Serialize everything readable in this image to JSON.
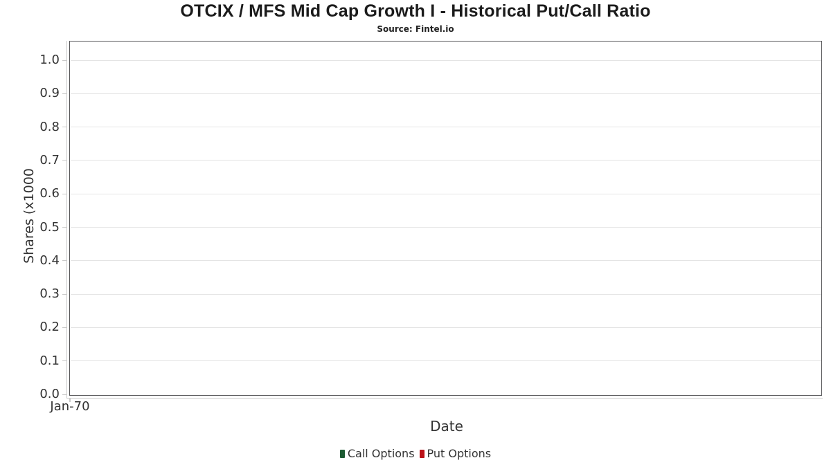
{
  "chart_data": {
    "type": "line",
    "title": "OTCIX / MFS Mid Cap Growth I - Historical Put/Call Ratio",
    "subtitle": "Source: Fintel.io",
    "xlabel": "Date",
    "ylabel": "Shares (x1000",
    "x_tick_labels": [
      "Jan-70"
    ],
    "y_tick_labels": [
      "0.0",
      "0.1",
      "0.2",
      "0.3",
      "0.4",
      "0.5",
      "0.6",
      "0.7",
      "0.8",
      "0.9",
      "1.0"
    ],
    "ylim": [
      0,
      1.05
    ],
    "grid": true,
    "legend_position": "bottom",
    "series": [
      {
        "name": "Call Options",
        "color": "#1c5a32",
        "x": [],
        "values": []
      },
      {
        "name": "Put Options",
        "color": "#bb1118",
        "x": [],
        "values": []
      }
    ]
  },
  "colors": {
    "call_options": "#1c5a32",
    "put_options": "#bb1118",
    "plot_border": "#58585a",
    "gridline": "#e4e4e4",
    "axis_line": "#c9c9c9",
    "tick_text": "#333333",
    "title_text": "#1b1b1b"
  }
}
